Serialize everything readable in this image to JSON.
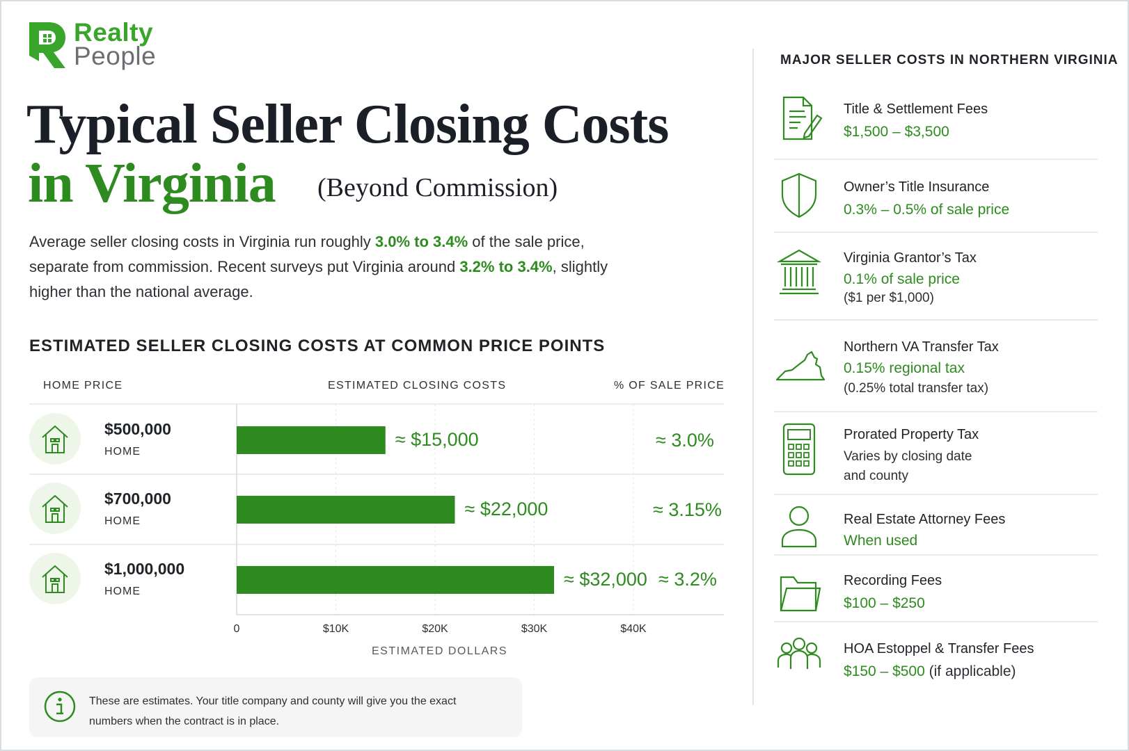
{
  "brand": {
    "line1": "Realty",
    "line2": "People"
  },
  "title": {
    "line1": "Typical Seller Closing Costs",
    "line2": "in Virginia",
    "suffix": "(Beyond Commission)"
  },
  "intro": {
    "p1": "Average seller closing costs in Virginia run roughly ",
    "h1": "3.0% to 3.4%",
    "p2": " of the sale price, separate from commission. Recent surveys put Virginia around ",
    "h2": "3.2% to 3.4%",
    "p3": ", slightly higher than the national average."
  },
  "chart_section_title": "ESTIMATED SELLER CLOSING COSTS AT COMMON PRICE POINTS",
  "chart_data": {
    "type": "bar",
    "orientation": "horizontal",
    "columns": {
      "home_price": "HOME PRICE",
      "closing": "ESTIMATED CLOSING COSTS",
      "percent": "% OF SALE PRICE"
    },
    "rows": [
      {
        "price": "$500,000",
        "sub": "HOME",
        "value": 15000,
        "value_label": "≈ $15,000",
        "pct_label": "≈ 3.0%"
      },
      {
        "price": "$700,000",
        "sub": "HOME",
        "value": 22000,
        "value_label": "≈ $22,000",
        "pct_label": "≈ 3.15%"
      },
      {
        "price": "$1,000,000",
        "sub": "HOME",
        "value": 32000,
        "value_label": "≈ $32,000",
        "pct_label": "≈ 3.2%"
      }
    ],
    "x_ticks": [
      {
        "value": 0,
        "label": "0"
      },
      {
        "value": 10000,
        "label": "$10K"
      },
      {
        "value": 20000,
        "label": "$20K"
      },
      {
        "value": 30000,
        "label": "$30K"
      },
      {
        "value": 40000,
        "label": "$40K"
      }
    ],
    "xlabel": "ESTIMATED DOLLARS",
    "bar_color": "#2e8b1f",
    "grid": true
  },
  "note": {
    "text": "These are estimates. Your title company and county will give you the exact numbers when the contract is in place."
  },
  "right_column": {
    "heading": "MAJOR SELLER COSTS IN NORTHERN VIRGINIA",
    "items": [
      {
        "icon": "document-pen-icon",
        "name": "Title & Settlement Fees",
        "value": "$1,500 – $3,500",
        "sub": ""
      },
      {
        "icon": "shield-icon",
        "name": "Owner’s Title Insurance",
        "value": "0.3% – 0.5% of sale price",
        "sub": ""
      },
      {
        "icon": "courthouse-icon",
        "name": "Virginia Grantor’s Tax",
        "value": "0.1% of sale price",
        "sub": "($1 per $1,000)"
      },
      {
        "icon": "virginia-map-icon",
        "name": "Northern VA Transfer Tax",
        "value": "0.15% regional tax",
        "sub": "(0.25% total transfer tax)"
      },
      {
        "icon": "calculator-icon",
        "name": "Prorated Property Tax",
        "value": "",
        "sub": "Varies by closing date",
        "sub2": "and county"
      },
      {
        "icon": "person-icon",
        "name": "Real Estate Attorney Fees",
        "value": "When used",
        "sub": ""
      },
      {
        "icon": "folder-icon",
        "name": "Recording Fees",
        "value": "$100 – $250",
        "sub": ""
      },
      {
        "icon": "group-icon",
        "name": "HOA Estoppel & Transfer Fees",
        "value": "$150 – $500",
        "value_suffix": " (if applicable)",
        "sub": ""
      }
    ]
  },
  "colors": {
    "brand_green": "#3aa52b",
    "accent_green": "#2e8b1f",
    "text_dark": "#1b1f27"
  }
}
